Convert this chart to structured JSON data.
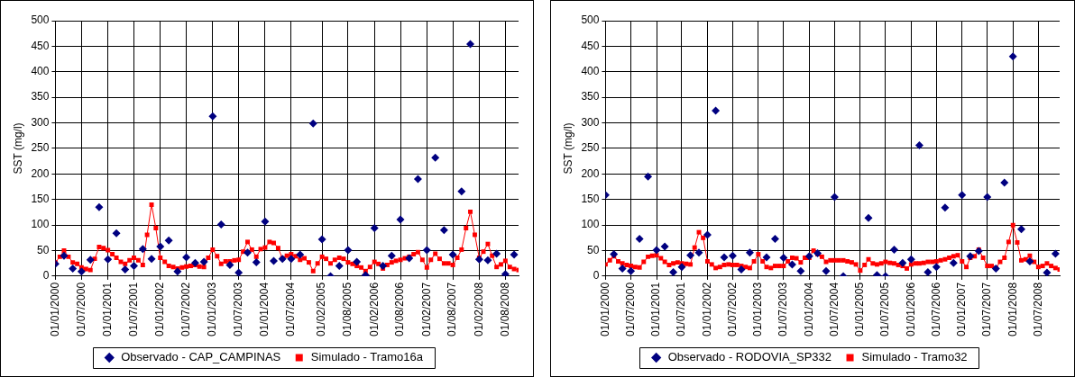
{
  "chart_data": [
    {
      "type": "line",
      "ylabel": "SST (mg/l)",
      "ylim": [
        0,
        500
      ],
      "yticks": [
        0,
        50,
        100,
        150,
        200,
        250,
        300,
        350,
        400,
        450,
        500
      ],
      "xlim": [
        "2000-01-01",
        "2008-11-01"
      ],
      "xticks": [
        {
          "value": "2000-01-01",
          "label": "01/01/2000"
        },
        {
          "value": "2000-07-01",
          "label": "01/07/2000"
        },
        {
          "value": "2001-01-01",
          "label": "01/01/2001"
        },
        {
          "value": "2001-07-01",
          "label": "01/07/2001"
        },
        {
          "value": "2002-01-01",
          "label": "01/01/2002"
        },
        {
          "value": "2002-07-01",
          "label": "01/07/2002"
        },
        {
          "value": "2003-01-01",
          "label": "01/01/2003"
        },
        {
          "value": "2003-07-01",
          "label": "01/07/2003"
        },
        {
          "value": "2004-01-01",
          "label": "01/01/2004"
        },
        {
          "value": "2004-07-01",
          "label": "01/07/2004"
        },
        {
          "value": "2005-02-01",
          "label": "01/02/2005"
        },
        {
          "value": "2005-08-01",
          "label": "01/08/2005"
        },
        {
          "value": "2006-02-01",
          "label": "01/02/2006"
        },
        {
          "value": "2006-08-01",
          "label": "01/08/2006"
        },
        {
          "value": "2007-02-01",
          "label": "01/02/2007"
        },
        {
          "value": "2007-08-01",
          "label": "01/08/2007"
        },
        {
          "value": "2008-02-01",
          "label": "01/02/2008"
        },
        {
          "value": "2008-08-01",
          "label": "01/08/2008"
        }
      ],
      "grid": true,
      "legend": "bottom",
      "x": [
        "2000-01",
        "2000-02",
        "2000-03",
        "2000-04",
        "2000-05",
        "2000-06",
        "2000-07",
        "2000-08",
        "2000-09",
        "2000-10",
        "2000-11",
        "2000-12",
        "2001-01",
        "2001-02",
        "2001-03",
        "2001-04",
        "2001-05",
        "2001-06",
        "2001-07",
        "2001-08",
        "2001-09",
        "2001-10",
        "2001-11",
        "2001-12",
        "2002-01",
        "2002-02",
        "2002-03",
        "2002-04",
        "2002-05",
        "2002-06",
        "2002-07",
        "2002-08",
        "2002-09",
        "2002-10",
        "2002-11",
        "2002-12",
        "2003-01",
        "2003-02",
        "2003-03",
        "2003-04",
        "2003-05",
        "2003-06",
        "2003-07",
        "2003-08",
        "2003-09",
        "2003-10",
        "2003-11",
        "2003-12",
        "2004-01",
        "2004-02",
        "2004-03",
        "2004-04",
        "2004-05",
        "2004-06",
        "2004-07",
        "2004-08",
        "2004-09",
        "2004-10",
        "2004-11",
        "2004-12",
        "2005-01",
        "2005-02",
        "2005-03",
        "2005-04",
        "2005-05",
        "2005-06",
        "2005-07",
        "2005-08",
        "2005-09",
        "2005-10",
        "2005-11",
        "2005-12",
        "2006-01",
        "2006-02",
        "2006-03",
        "2006-04",
        "2006-05",
        "2006-06",
        "2006-07",
        "2006-08",
        "2006-09",
        "2006-10",
        "2006-11",
        "2006-12",
        "2007-01",
        "2007-02",
        "2007-03",
        "2007-04",
        "2007-05",
        "2007-06",
        "2007-07",
        "2007-08",
        "2007-09",
        "2007-10",
        "2007-11",
        "2007-12",
        "2008-01",
        "2008-02",
        "2008-03",
        "2008-04",
        "2008-05",
        "2008-06",
        "2008-07",
        "2008-08",
        "2008-09",
        "2008-10",
        "2008-11"
      ],
      "series": [
        {
          "name": "Observado - CAP_CAMPINAS",
          "type": "scatter",
          "marker": "diamond",
          "color": "#000080",
          "x": [
            "2000-01",
            "2000-03",
            "2000-05",
            "2000-07",
            "2000-09",
            "2000-11",
            "2001-01",
            "2001-03",
            "2001-05",
            "2001-07",
            "2001-09",
            "2001-11",
            "2002-01",
            "2002-03",
            "2002-05",
            "2002-07",
            "2002-09",
            "2002-11",
            "2003-01",
            "2003-03",
            "2003-05",
            "2003-07",
            "2003-09",
            "2003-11",
            "2004-01",
            "2004-03",
            "2004-05",
            "2004-07",
            "2004-09",
            "2004-12",
            "2005-02",
            "2005-04",
            "2005-06",
            "2005-08",
            "2005-10",
            "2005-12",
            "2006-02",
            "2006-04",
            "2006-06",
            "2006-08",
            "2006-10",
            "2006-12",
            "2007-02",
            "2007-04",
            "2007-06",
            "2007-08",
            "2007-10",
            "2007-12",
            "2008-02",
            "2008-04",
            "2008-06",
            "2008-08",
            "2008-10"
          ],
          "values": [
            24,
            40,
            15,
            9,
            32,
            135,
            33,
            84,
            13,
            20,
            53,
            34,
            58,
            70,
            9,
            37,
            26,
            28,
            313,
            101,
            22,
            7,
            46,
            27,
            107,
            30,
            34,
            34,
            42,
            299,
            72,
            0,
            20,
            51,
            28,
            2,
            94,
            20,
            40,
            111,
            35,
            190,
            51,
            232,
            90,
            42,
            166,
            454,
            33,
            31,
            44,
            4,
            42
          ]
        },
        {
          "name": "Simulado - Tramo16a",
          "type": "line",
          "marker": "square",
          "color": "#ff0000",
          "values": [
            27,
            38,
            50,
            38,
            27,
            24,
            17,
            14,
            12,
            34,
            57,
            55,
            51,
            43,
            36,
            28,
            24,
            31,
            36,
            31,
            22,
            81,
            140,
            94,
            36,
            28,
            20,
            18,
            15,
            17,
            19,
            20,
            22,
            19,
            18,
            36,
            52,
            39,
            24,
            29,
            29,
            31,
            32,
            48,
            67,
            52,
            38,
            53,
            56,
            67,
            65,
            55,
            35,
            40,
            43,
            39,
            32,
            35,
            27,
            10,
            25,
            38,
            34,
            25,
            32,
            36,
            34,
            27,
            24,
            20,
            17,
            10,
            18,
            28,
            24,
            15,
            22,
            27,
            30,
            32,
            35,
            38,
            43,
            47,
            32,
            17,
            32,
            44,
            34,
            25,
            25,
            22,
            36,
            52,
            94,
            126,
            81,
            36,
            48,
            63,
            40,
            18,
            23,
            30,
            18,
            14,
            12
          ]
        }
      ]
    },
    {
      "type": "line",
      "ylabel": "SST (mg/l)",
      "ylim": [
        0,
        500
      ],
      "yticks": [
        0,
        50,
        100,
        150,
        200,
        250,
        300,
        350,
        400,
        450,
        500
      ],
      "xlim": [
        "2000-01-01",
        "2008-12-01"
      ],
      "xticks": [
        {
          "value": "2000-01-01",
          "label": "01/01/2000"
        },
        {
          "value": "2000-07-01",
          "label": "01/07/2000"
        },
        {
          "value": "2001-01-01",
          "label": "01/01/2001"
        },
        {
          "value": "2001-07-01",
          "label": "01/07/2001"
        },
        {
          "value": "2002-01-01",
          "label": "01/01/2002"
        },
        {
          "value": "2002-07-01",
          "label": "01/07/2002"
        },
        {
          "value": "2003-01-01",
          "label": "01/01/2003"
        },
        {
          "value": "2003-07-01",
          "label": "01/07/2003"
        },
        {
          "value": "2004-01-01",
          "label": "01/01/2004"
        },
        {
          "value": "2004-07-01",
          "label": "01/07/2004"
        },
        {
          "value": "2005-01-01",
          "label": "01/01/2005"
        },
        {
          "value": "2005-07-01",
          "label": "01/07/2005"
        },
        {
          "value": "2006-01-01",
          "label": "01/01/2006"
        },
        {
          "value": "2006-07-01",
          "label": "01/07/2006"
        },
        {
          "value": "2007-01-01",
          "label": "01/01/2007"
        },
        {
          "value": "2007-07-01",
          "label": "01/07/2007"
        },
        {
          "value": "2008-01-01",
          "label": "01/01/2008"
        },
        {
          "value": "2008-07-01",
          "label": "01/07/2008"
        }
      ],
      "grid": true,
      "legend": "bottom",
      "x": [
        "2000-01",
        "2000-02",
        "2000-03",
        "2000-04",
        "2000-05",
        "2000-06",
        "2000-07",
        "2000-08",
        "2000-09",
        "2000-10",
        "2000-11",
        "2000-12",
        "2001-01",
        "2001-02",
        "2001-03",
        "2001-04",
        "2001-05",
        "2001-06",
        "2001-07",
        "2001-08",
        "2001-09",
        "2001-10",
        "2001-11",
        "2001-12",
        "2002-01",
        "2002-02",
        "2002-03",
        "2002-04",
        "2002-05",
        "2002-06",
        "2002-07",
        "2002-08",
        "2002-09",
        "2002-10",
        "2002-11",
        "2002-12",
        "2003-01",
        "2003-02",
        "2003-03",
        "2003-04",
        "2003-05",
        "2003-06",
        "2003-07",
        "2003-08",
        "2003-09",
        "2003-10",
        "2003-11",
        "2003-12",
        "2004-01",
        "2004-02",
        "2004-03",
        "2004-04",
        "2004-05",
        "2004-06",
        "2004-07",
        "2004-08",
        "2004-09",
        "2004-10",
        "2004-11",
        "2004-12",
        "2005-01",
        "2005-02",
        "2005-03",
        "2005-04",
        "2005-05",
        "2005-06",
        "2005-07",
        "2005-08",
        "2005-09",
        "2005-10",
        "2005-11",
        "2005-12",
        "2006-01",
        "2006-02",
        "2006-03",
        "2006-04",
        "2006-05",
        "2006-06",
        "2006-07",
        "2006-08",
        "2006-09",
        "2006-10",
        "2006-11",
        "2006-12",
        "2007-01",
        "2007-02",
        "2007-03",
        "2007-04",
        "2007-05",
        "2007-06",
        "2007-07",
        "2007-08",
        "2007-09",
        "2007-10",
        "2007-11",
        "2007-12",
        "2008-01",
        "2008-02",
        "2008-03",
        "2008-04",
        "2008-05",
        "2008-06",
        "2008-07",
        "2008-08",
        "2008-09",
        "2008-10",
        "2008-11",
        "2008-12"
      ],
      "series": [
        {
          "name": "Observado - RODOVIA_SP332",
          "type": "scatter",
          "marker": "diamond",
          "color": "#000080",
          "x": [
            "2000-01",
            "2000-03",
            "2000-05",
            "2000-07",
            "2000-09",
            "2000-11",
            "2001-01",
            "2001-03",
            "2001-05",
            "2001-07",
            "2001-09",
            "2001-11",
            "2002-01",
            "2002-03",
            "2002-05",
            "2002-07",
            "2002-09",
            "2002-11",
            "2003-03",
            "2003-05",
            "2003-07",
            "2003-09",
            "2003-11",
            "2004-01",
            "2004-03",
            "2004-05",
            "2004-07",
            "2004-09",
            "2005-03",
            "2005-05",
            "2005-07",
            "2005-09",
            "2005-11",
            "2006-01",
            "2006-03",
            "2006-05",
            "2006-07",
            "2006-09",
            "2006-11",
            "2007-01",
            "2007-03",
            "2007-05",
            "2007-07",
            "2007-09",
            "2007-11",
            "2008-01",
            "2008-03",
            "2008-05",
            "2008-09",
            "2008-11"
          ],
          "values": [
            159,
            43,
            15,
            10,
            73,
            195,
            51,
            58,
            8,
            18,
            41,
            46,
            81,
            324,
            37,
            40,
            13,
            46,
            37,
            73,
            36,
            23,
            10,
            39,
            45,
            10,
            155,
            0,
            114,
            2,
            0,
            52,
            26,
            33,
            256,
            8,
            18,
            134,
            26,
            159,
            39,
            49,
            155,
            15,
            183,
            430,
            92,
            29,
            7,
            44
          ]
        },
        {
          "name": "Simulado - Tramo32",
          "type": "line",
          "marker": "square",
          "color": "#ff0000",
          "values": [
            23,
            31,
            39,
            29,
            25,
            22,
            20,
            18,
            17,
            28,
            38,
            40,
            41,
            35,
            28,
            22,
            25,
            27,
            25,
            24,
            23,
            56,
            86,
            75,
            29,
            23,
            16,
            18,
            22,
            23,
            22,
            22,
            20,
            18,
            16,
            29,
            43,
            29,
            18,
            16,
            20,
            20,
            20,
            29,
            36,
            35,
            27,
            36,
            36,
            50,
            43,
            38,
            28,
            31,
            31,
            31,
            31,
            29,
            27,
            23,
            11,
            22,
            33,
            25,
            23,
            25,
            28,
            26,
            25,
            22,
            20,
            15,
            23,
            25,
            25,
            26,
            28,
            28,
            29,
            31,
            33,
            36,
            39,
            41,
            29,
            18,
            36,
            39,
            52,
            36,
            20,
            20,
            16,
            28,
            36,
            67,
            100,
            66,
            31,
            33,
            40,
            28,
            18,
            20,
            25,
            20,
            16,
            13
          ]
        }
      ]
    }
  ]
}
